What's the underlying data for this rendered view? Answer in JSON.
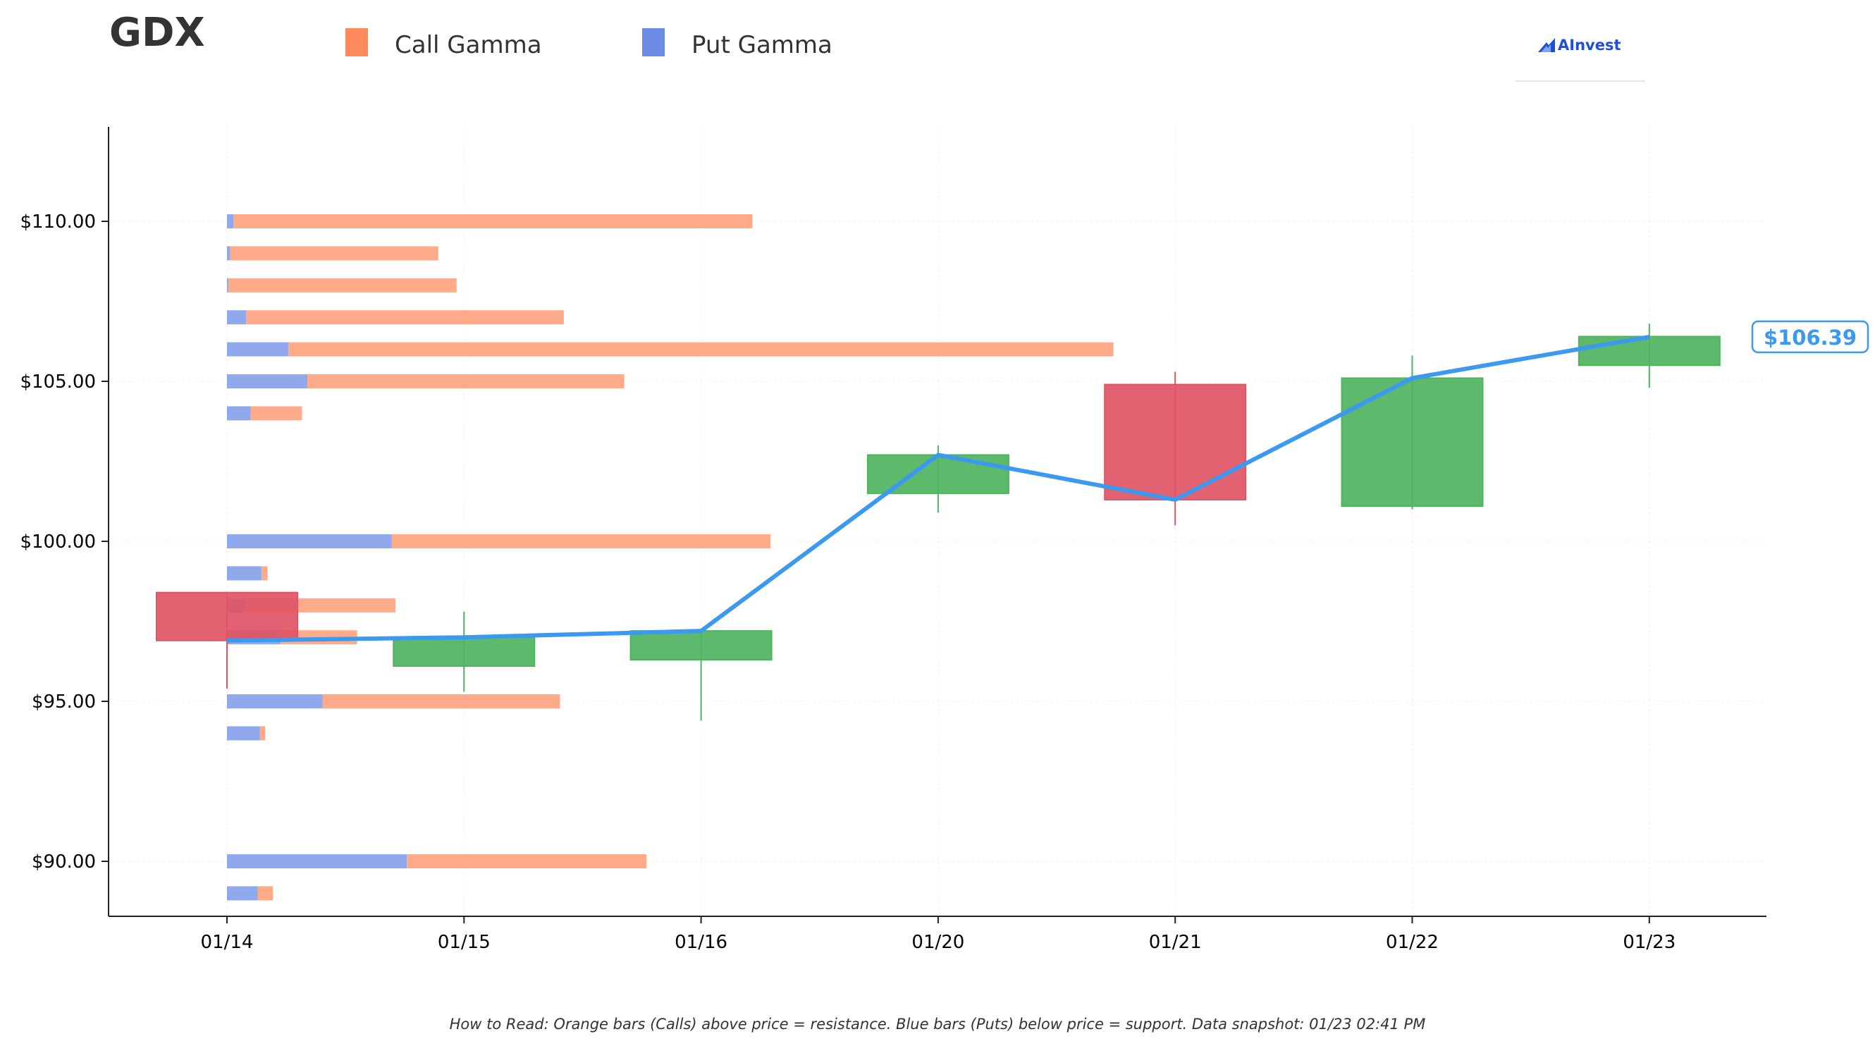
{
  "chart_data": {
    "type": "candlestick",
    "ticker": "GDX",
    "legend": [
      {
        "name": "Call Gamma",
        "color": "#ff8a5c"
      },
      {
        "name": "Put Gamma",
        "color": "#6b8be6"
      }
    ],
    "categories": [
      "01/14",
      "01/15",
      "01/16",
      "01/20",
      "01/21",
      "01/22",
      "01/23"
    ],
    "candles": [
      {
        "date": "01/14",
        "open": 98.4,
        "close": 96.9,
        "high": 98.4,
        "low": 95.4,
        "color": "#e05565"
      },
      {
        "date": "01/15",
        "open": 96.1,
        "close": 97.0,
        "high": 97.8,
        "low": 95.3,
        "color": "#4fb35f"
      },
      {
        "date": "01/16",
        "open": 96.3,
        "close": 97.2,
        "high": 97.2,
        "low": 94.4,
        "color": "#4fb35f"
      },
      {
        "date": "01/20",
        "open": 101.5,
        "close": 102.7,
        "high": 103.0,
        "low": 100.9,
        "color": "#4fb35f"
      },
      {
        "date": "01/21",
        "open": 104.9,
        "close": 101.3,
        "high": 105.3,
        "low": 100.5,
        "color": "#e05565"
      },
      {
        "date": "01/22",
        "open": 101.1,
        "close": 105.1,
        "high": 105.8,
        "low": 101.0,
        "color": "#4fb35f"
      },
      {
        "date": "01/23",
        "open": 105.5,
        "close": 106.4,
        "high": 106.8,
        "low": 104.8,
        "color": "#4fb35f"
      }
    ],
    "close_line": [
      96.9,
      97.0,
      97.2,
      102.7,
      101.3,
      105.1,
      106.39
    ],
    "line_color": "#3b99f0",
    "gamma_bars": [
      {
        "strike": 110,
        "put": 0.17,
        "call": 13.56
      },
      {
        "strike": 109,
        "put": 0.08,
        "call": 5.44
      },
      {
        "strike": 108,
        "put": 0.04,
        "call": 5.96
      },
      {
        "strike": 107,
        "put": 0.5,
        "call": 8.3
      },
      {
        "strike": 106,
        "put": 1.6,
        "call": 21.56
      },
      {
        "strike": 105,
        "put": 2.1,
        "call": 8.28
      },
      {
        "strike": 104,
        "put": 0.62,
        "call": 1.34
      },
      {
        "strike": 100,
        "put": 4.3,
        "call": 9.9
      },
      {
        "strike": 99,
        "put": 0.9,
        "call": 0.16
      },
      {
        "strike": 98,
        "put": 0.5,
        "call": 3.9
      },
      {
        "strike": 97,
        "put": 1.4,
        "call": 2.0
      },
      {
        "strike": 95,
        "put": 2.5,
        "call": 6.2
      },
      {
        "strike": 94,
        "put": 0.86,
        "call": 0.14
      },
      {
        "strike": 90,
        "put": 4.7,
        "call": 6.26
      },
      {
        "strike": 89,
        "put": 0.8,
        "call": 0.4
      }
    ],
    "y_ticks": [
      {
        "value": 110,
        "label": "$110.00"
      },
      {
        "value": 105,
        "label": "$105.00"
      },
      {
        "value": 100,
        "label": "$100.00"
      },
      {
        "value": 95,
        "label": "$95.00"
      },
      {
        "value": 90,
        "label": "$90.00"
      }
    ],
    "ylim": [
      88.25,
      113.0
    ],
    "grid": true,
    "last_price_label": "$106.39",
    "last_price": 106.39
  },
  "logo": {
    "text": "AInvest"
  },
  "footnote": "How to Read: Orange bars (Calls) above price = resistance. Blue bars (Puts) below price = support. Data snapshot: 01/23 02:41 PM"
}
